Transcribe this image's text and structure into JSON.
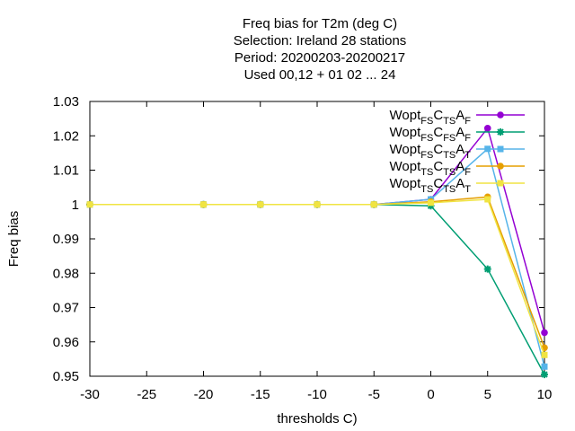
{
  "chart_data": {
    "type": "line",
    "title_lines": [
      "Freq bias  for T2m (deg C)",
      "Selection: Ireland      28 stations",
      "Period: 20200203-20200217",
      "Used  00,12  + 01 02 ... 24"
    ],
    "xlabel": "thresholds C)",
    "ylabel": "Freq bias",
    "xlim": [
      -30,
      10
    ],
    "ylim": [
      0.95,
      1.03
    ],
    "x_ticks": [
      -30,
      -25,
      -20,
      -15,
      -10,
      -5,
      0,
      5,
      10
    ],
    "x_tick_labels": [
      "-30",
      "-25",
      "-20",
      "-15",
      "-10",
      "-5",
      "0",
      "5",
      "10"
    ],
    "y_ticks": [
      0.95,
      0.96,
      0.97,
      0.98,
      0.99,
      1.0,
      1.01,
      1.02,
      1.03
    ],
    "y_tick_labels": [
      "0.95",
      "0.96",
      "0.97",
      "0.98",
      "0.99",
      "1",
      "1.01",
      "1.02",
      "1.03"
    ],
    "grid": false,
    "legend_position": "top-right",
    "x": [
      -30,
      -20,
      -15,
      -10,
      -5,
      0,
      5,
      10
    ],
    "series": [
      {
        "legend": [
          [
            "Wopt",
            ""
          ],
          [
            "FS",
            "sub"
          ],
          [
            "C",
            ""
          ],
          [
            "TS",
            "sub"
          ],
          [
            "A",
            ""
          ],
          [
            "F",
            "sub"
          ]
        ],
        "color": "#9400d3",
        "marker": "circle",
        "values": [
          1.0,
          1.0,
          1.0,
          1.0,
          1.0,
          1.0015,
          1.0222,
          0.9627
        ]
      },
      {
        "legend": [
          [
            "Wopt",
            ""
          ],
          [
            "FS",
            "sub"
          ],
          [
            "C",
            ""
          ],
          [
            "FS",
            "sub"
          ],
          [
            "A",
            ""
          ],
          [
            "F",
            "sub"
          ]
        ],
        "color": "#009e73",
        "marker": "star",
        "values": [
          1.0,
          1.0,
          1.0,
          1.0,
          1.0,
          0.9996,
          0.9812,
          0.9505
        ]
      },
      {
        "legend": [
          [
            "Wopt",
            ""
          ],
          [
            "FS",
            "sub"
          ],
          [
            "C",
            ""
          ],
          [
            "TS",
            "sub"
          ],
          [
            "A",
            ""
          ],
          [
            "T",
            "sub"
          ]
        ],
        "color": "#56b4e9",
        "marker": "square",
        "values": [
          1.0,
          1.0,
          1.0,
          1.0,
          1.0,
          1.0015,
          1.0162,
          0.9528
        ]
      },
      {
        "legend": [
          [
            "Wopt",
            ""
          ],
          [
            "TS",
            "sub"
          ],
          [
            "C",
            ""
          ],
          [
            "TS",
            "sub"
          ],
          [
            "A",
            ""
          ],
          [
            "F",
            "sub"
          ]
        ],
        "color": "#e69f00",
        "marker": "circle",
        "values": [
          1.0,
          1.0,
          1.0,
          1.0,
          1.0,
          1.0008,
          1.0022,
          0.9583
        ]
      },
      {
        "legend": [
          [
            "Wopt",
            ""
          ],
          [
            "TS",
            "sub"
          ],
          [
            "C",
            ""
          ],
          [
            "TS",
            "sub"
          ],
          [
            "A",
            ""
          ],
          [
            "T",
            "sub"
          ]
        ],
        "color": "#f0e442",
        "marker": "square",
        "values": [
          1.0,
          1.0,
          1.0,
          1.0,
          1.0,
          1.0005,
          1.0015,
          0.9562
        ]
      }
    ]
  }
}
